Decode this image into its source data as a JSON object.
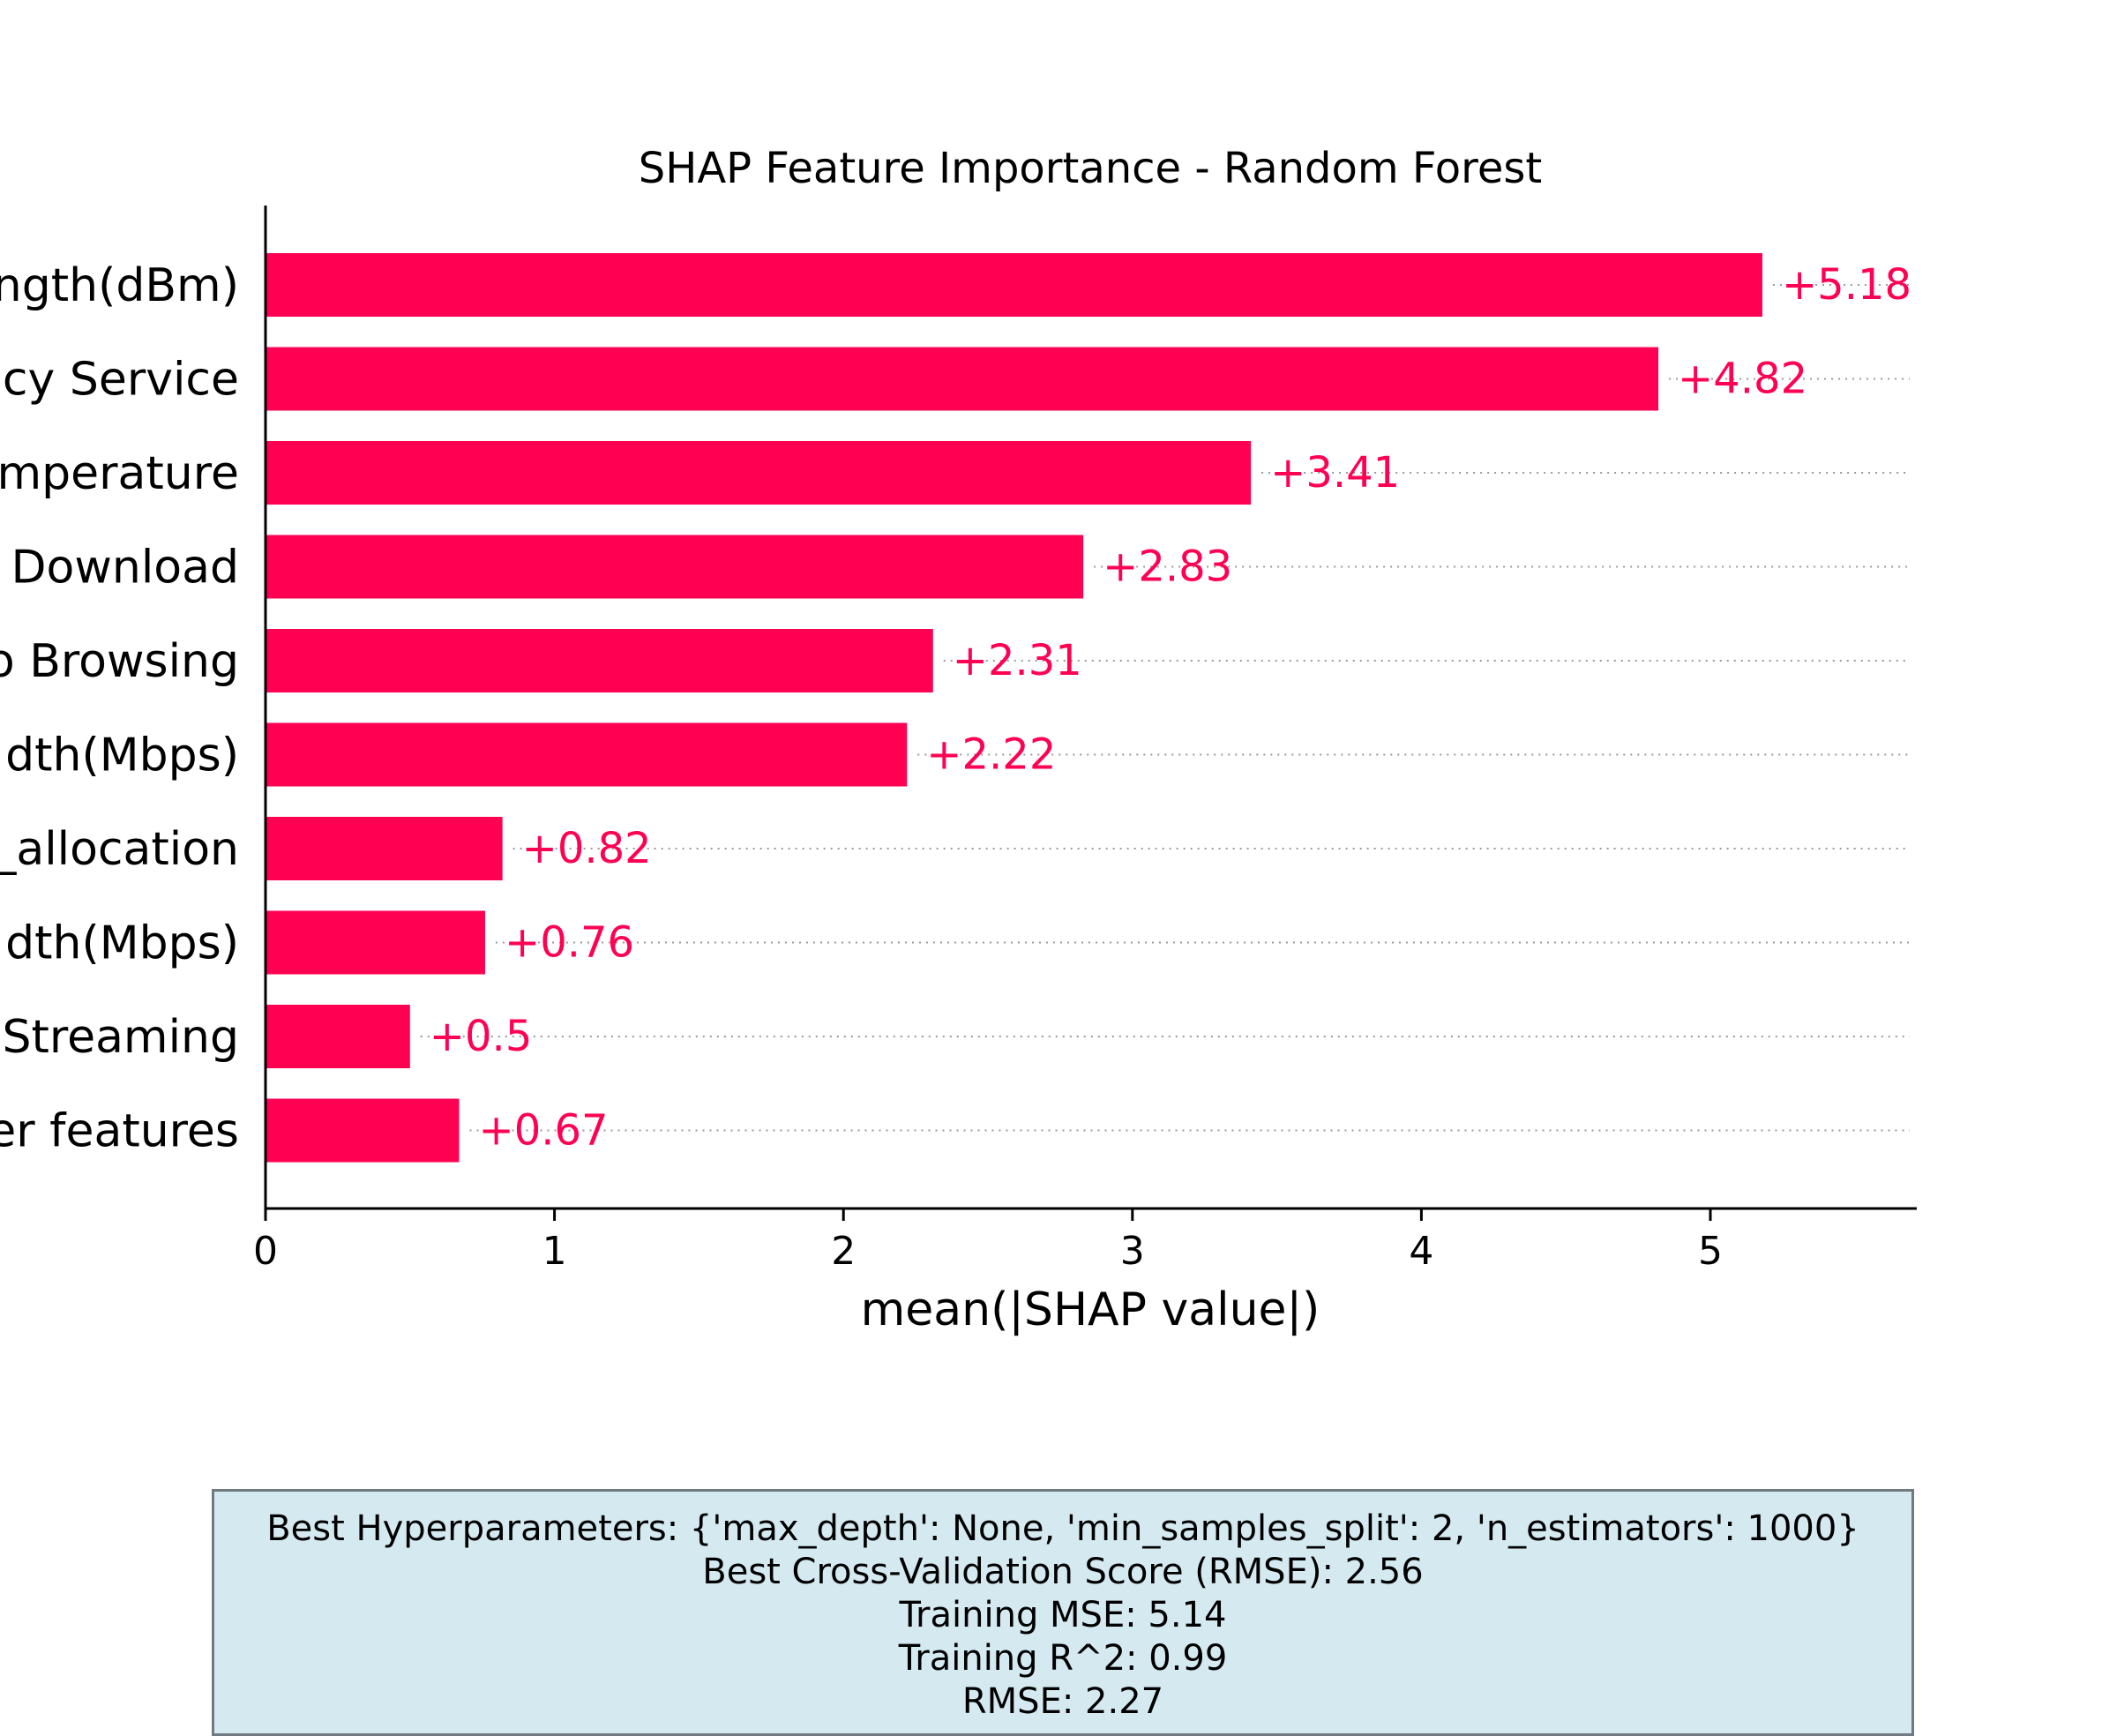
{
  "chart_data": {
    "type": "bar",
    "orientation": "horizontal",
    "title": "SHAP Feature Importance - Random Forest",
    "xlabel": "mean(|SHAP value|)",
    "ylabel": "",
    "xlim": [
      0,
      5.7
    ],
    "xticks": [
      0,
      1,
      2,
      3,
      4,
      5
    ],
    "categories": [
      "ngth(dBm)",
      "cy Service",
      "mperature",
      "Download",
      "o Browsing",
      "dth(Mbps)",
      "_allocation",
      "dth(Mbps)",
      "Streaming",
      "er features"
    ],
    "values": [
      5.18,
      4.82,
      3.41,
      2.83,
      2.31,
      2.22,
      0.82,
      0.76,
      0.5,
      0.67
    ],
    "value_labels": [
      "+5.18",
      "+4.82",
      "+3.41",
      "+2.83",
      "+2.31",
      "+2.22",
      "+0.82",
      "+0.76",
      "+0.5",
      "+0.67"
    ],
    "bar_color": "#ff0052",
    "grid": "dotted row guides",
    "legend": "none"
  },
  "summary": {
    "lines": [
      "Best Hyperparameters: {'max_depth': None, 'min_samples_split': 2, 'n_estimators': 1000}",
      "Best Cross-Validation Score (RMSE): 2.56",
      "Training MSE: 5.14",
      "Training R^2: 0.99",
      "RMSE: 2.27"
    ],
    "background_color": "#d4eaf0"
  }
}
